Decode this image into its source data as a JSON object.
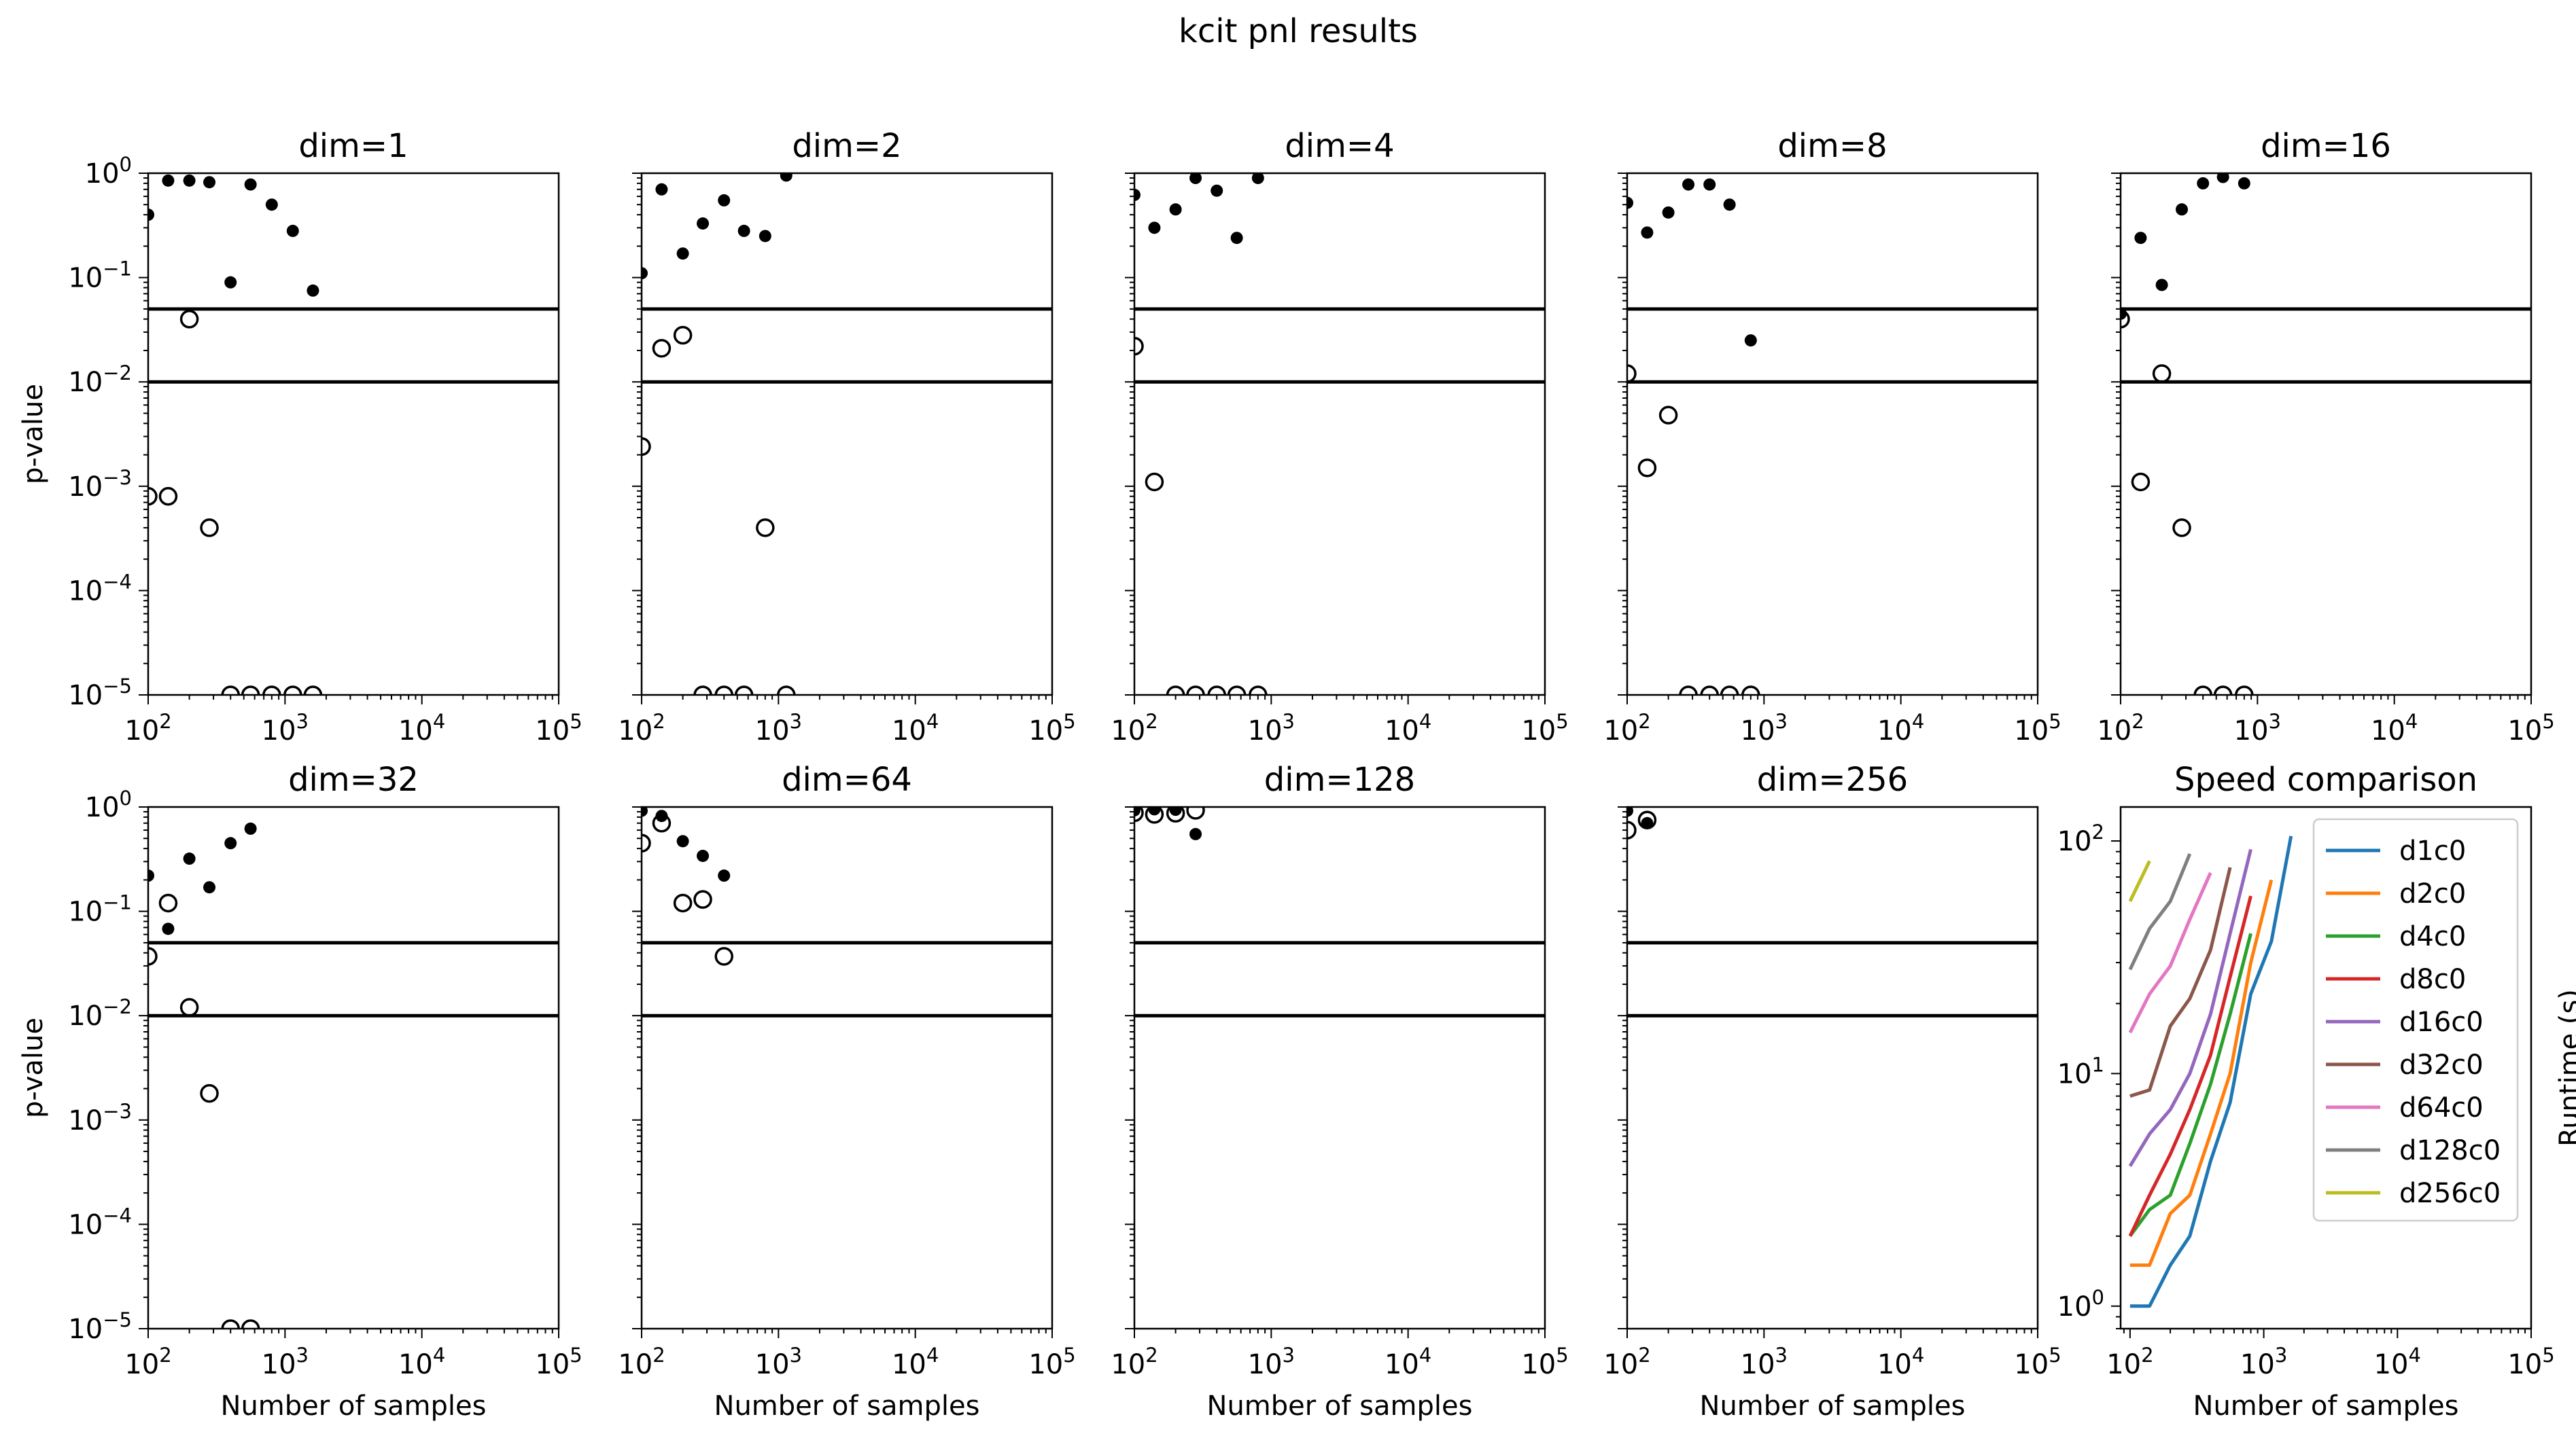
{
  "figure": {
    "title": "kcit pnl results"
  },
  "chart_data": [
    {
      "type": "scatter",
      "title": "dim=1",
      "xlabel": "",
      "ylabel": "p-value",
      "xscale": "log",
      "yscale": "log",
      "xlim": [
        100,
        100000
      ],
      "ylim": [
        1e-05,
        1
      ],
      "xticks": [
        "10^2",
        "10^3",
        "10^4",
        "10^5"
      ],
      "yticks": [
        "10^0",
        "10^-1",
        "10^-2",
        "10^-3",
        "10^-4",
        "10^-5"
      ],
      "hlines": [
        0.05,
        0.01
      ],
      "series": [
        {
          "marker": "filled",
          "points": [
            [
              100,
              0.4
            ],
            [
              140,
              0.85
            ],
            [
              200,
              0.85
            ],
            [
              280,
              0.82
            ],
            [
              400,
              0.09
            ],
            [
              560,
              0.78
            ],
            [
              800,
              0.5
            ],
            [
              1140,
              0.28
            ],
            [
              1600,
              0.075
            ]
          ]
        },
        {
          "marker": "open",
          "points": [
            [
              100,
              0.0008
            ],
            [
              140,
              0.0008
            ],
            [
              200,
              0.04
            ],
            [
              280,
              0.0004
            ],
            [
              400,
              1e-05
            ],
            [
              560,
              1e-05
            ],
            [
              800,
              1e-05
            ],
            [
              1140,
              1e-05
            ],
            [
              1600,
              1e-05
            ]
          ]
        }
      ]
    },
    {
      "type": "scatter",
      "title": "dim=2",
      "xlabel": "",
      "ylabel": "",
      "xscale": "log",
      "yscale": "log",
      "xlim": [
        100,
        100000
      ],
      "ylim": [
        1e-05,
        1
      ],
      "xticks": [
        "10^2",
        "10^3",
        "10^4",
        "10^5"
      ],
      "yticks": [],
      "hlines": [
        0.05,
        0.01
      ],
      "series": [
        {
          "marker": "filled",
          "points": [
            [
              100,
              0.11
            ],
            [
              140,
              0.7
            ],
            [
              200,
              0.17
            ],
            [
              280,
              0.33
            ],
            [
              400,
              0.55
            ],
            [
              560,
              0.28
            ],
            [
              800,
              0.25
            ],
            [
              1140,
              0.95
            ]
          ]
        },
        {
          "marker": "open",
          "points": [
            [
              100,
              0.0024
            ],
            [
              140,
              0.021
            ],
            [
              200,
              0.028
            ],
            [
              280,
              1e-05
            ],
            [
              400,
              1e-05
            ],
            [
              560,
              1e-05
            ],
            [
              800,
              0.0004
            ],
            [
              1140,
              1e-05
            ]
          ]
        }
      ]
    },
    {
      "type": "scatter",
      "title": "dim=4",
      "xlabel": "",
      "ylabel": "",
      "xscale": "log",
      "yscale": "log",
      "xlim": [
        100,
        100000
      ],
      "ylim": [
        1e-05,
        1
      ],
      "xticks": [
        "10^2",
        "10^3",
        "10^4",
        "10^5"
      ],
      "yticks": [],
      "hlines": [
        0.05,
        0.01
      ],
      "series": [
        {
          "marker": "filled",
          "points": [
            [
              100,
              0.62
            ],
            [
              140,
              0.3
            ],
            [
              200,
              0.45
            ],
            [
              280,
              0.9
            ],
            [
              400,
              0.68
            ],
            [
              560,
              0.24
            ],
            [
              800,
              0.9
            ]
          ]
        },
        {
          "marker": "open",
          "points": [
            [
              100,
              0.022
            ],
            [
              140,
              0.0011
            ],
            [
              200,
              1e-05
            ],
            [
              280,
              1e-05
            ],
            [
              400,
              1e-05
            ],
            [
              560,
              1e-05
            ],
            [
              800,
              1e-05
            ]
          ]
        }
      ]
    },
    {
      "type": "scatter",
      "title": "dim=8",
      "xlabel": "",
      "ylabel": "",
      "xscale": "log",
      "yscale": "log",
      "xlim": [
        100,
        100000
      ],
      "ylim": [
        1e-05,
        1
      ],
      "xticks": [
        "10^2",
        "10^3",
        "10^4",
        "10^5"
      ],
      "yticks": [],
      "hlines": [
        0.05,
        0.01
      ],
      "series": [
        {
          "marker": "filled",
          "points": [
            [
              100,
              0.52
            ],
            [
              140,
              0.27
            ],
            [
              200,
              0.42
            ],
            [
              280,
              0.78
            ],
            [
              400,
              0.78
            ],
            [
              560,
              0.5
            ],
            [
              800,
              0.025
            ]
          ]
        },
        {
          "marker": "open",
          "points": [
            [
              100,
              0.012
            ],
            [
              140,
              0.0015
            ],
            [
              200,
              0.0048
            ],
            [
              280,
              1e-05
            ],
            [
              400,
              1e-05
            ],
            [
              560,
              1e-05
            ],
            [
              800,
              1e-05
            ]
          ]
        }
      ]
    },
    {
      "type": "scatter",
      "title": "dim=16",
      "xlabel": "",
      "ylabel": "",
      "xscale": "log",
      "yscale": "log",
      "xlim": [
        100,
        100000
      ],
      "ylim": [
        1e-05,
        1
      ],
      "xticks": [
        "10^2",
        "10^3",
        "10^4",
        "10^5"
      ],
      "yticks": [],
      "hlines": [
        0.05,
        0.01
      ],
      "series": [
        {
          "marker": "filled",
          "points": [
            [
              100,
              0.045
            ],
            [
              140,
              0.24
            ],
            [
              200,
              0.085
            ],
            [
              280,
              0.45
            ],
            [
              400,
              0.8
            ],
            [
              560,
              0.92
            ],
            [
              800,
              0.8
            ]
          ]
        },
        {
          "marker": "open",
          "points": [
            [
              100,
              0.04
            ],
            [
              140,
              0.0011
            ],
            [
              200,
              0.012
            ],
            [
              280,
              0.0004
            ],
            [
              400,
              1e-05
            ],
            [
              560,
              1e-05
            ],
            [
              800,
              1e-05
            ]
          ]
        }
      ]
    },
    {
      "type": "scatter",
      "title": "dim=32",
      "xlabel": "Number of samples",
      "ylabel": "p-value",
      "xscale": "log",
      "yscale": "log",
      "xlim": [
        100,
        100000
      ],
      "ylim": [
        1e-05,
        1
      ],
      "xticks": [
        "10^2",
        "10^3",
        "10^4",
        "10^5"
      ],
      "yticks": [
        "10^0",
        "10^-1",
        "10^-2",
        "10^-3",
        "10^-4",
        "10^-5"
      ],
      "hlines": [
        0.05,
        0.01
      ],
      "series": [
        {
          "marker": "filled",
          "points": [
            [
              100,
              0.22
            ],
            [
              140,
              0.068
            ],
            [
              200,
              0.32
            ],
            [
              280,
              0.17
            ],
            [
              400,
              0.45
            ],
            [
              560,
              0.62
            ]
          ]
        },
        {
          "marker": "open",
          "points": [
            [
              100,
              0.037
            ],
            [
              140,
              0.12
            ],
            [
              200,
              0.012
            ],
            [
              280,
              0.0018
            ],
            [
              400,
              1e-05
            ],
            [
              560,
              1e-05
            ]
          ]
        }
      ]
    },
    {
      "type": "scatter",
      "title": "dim=64",
      "xlabel": "Number of samples",
      "ylabel": "",
      "xscale": "log",
      "yscale": "log",
      "xlim": [
        100,
        100000
      ],
      "ylim": [
        1e-05,
        1
      ],
      "xticks": [
        "10^2",
        "10^3",
        "10^4",
        "10^5"
      ],
      "yticks": [],
      "hlines": [
        0.05,
        0.01
      ],
      "series": [
        {
          "marker": "filled",
          "points": [
            [
              100,
              0.92
            ],
            [
              140,
              0.82
            ],
            [
              200,
              0.47
            ],
            [
              280,
              0.34
            ],
            [
              400,
              0.22
            ]
          ]
        },
        {
          "marker": "open",
          "points": [
            [
              100,
              0.45
            ],
            [
              140,
              0.7
            ],
            [
              200,
              0.12
            ],
            [
              280,
              0.13
            ],
            [
              400,
              0.037
            ]
          ]
        }
      ]
    },
    {
      "type": "scatter",
      "title": "dim=128",
      "xlabel": "Number of samples",
      "ylabel": "",
      "xscale": "log",
      "yscale": "log",
      "xlim": [
        100,
        100000
      ],
      "ylim": [
        1e-05,
        1
      ],
      "xticks": [
        "10^2",
        "10^3",
        "10^4",
        "10^5"
      ],
      "yticks": [],
      "hlines": [
        0.05,
        0.01
      ],
      "series": [
        {
          "marker": "filled",
          "points": [
            [
              100,
              0.93
            ],
            [
              140,
              0.95
            ],
            [
              200,
              0.94
            ],
            [
              280,
              0.55
            ]
          ]
        },
        {
          "marker": "open",
          "points": [
            [
              100,
              0.88
            ],
            [
              140,
              0.85
            ],
            [
              200,
              0.87
            ],
            [
              280,
              0.93
            ]
          ]
        }
      ]
    },
    {
      "type": "scatter",
      "title": "dim=256",
      "xlabel": "Number of samples",
      "ylabel": "",
      "xscale": "log",
      "yscale": "log",
      "xlim": [
        100,
        100000
      ],
      "ylim": [
        1e-05,
        1
      ],
      "xticks": [
        "10^2",
        "10^3",
        "10^4",
        "10^5"
      ],
      "yticks": [],
      "hlines": [
        0.05,
        0.01
      ],
      "series": [
        {
          "marker": "filled",
          "points": [
            [
              100,
              0.92
            ],
            [
              140,
              0.7
            ]
          ]
        },
        {
          "marker": "open",
          "points": [
            [
              100,
              0.6
            ],
            [
              140,
              0.75
            ]
          ]
        }
      ]
    },
    {
      "type": "line",
      "title": "Speed comparison",
      "xlabel": "Number of samples",
      "ylabel": "Runtime (s)",
      "xscale": "log",
      "yscale": "log",
      "xlim": [
        85,
        100000
      ],
      "ylim": [
        0.8,
        140
      ],
      "xticks": [
        "10^2",
        "10^3",
        "10^4",
        "10^5"
      ],
      "yticks": [
        "10^0",
        "10^1",
        "10^2"
      ],
      "legend": "top-right",
      "series": [
        {
          "name": "d1c0",
          "color": "#1f77b4",
          "points": [
            [
              100,
              1.0
            ],
            [
              140,
              1.0
            ],
            [
              200,
              1.5
            ],
            [
              280,
              2.0
            ],
            [
              400,
              4.2
            ],
            [
              560,
              7.5
            ],
            [
              800,
              22
            ],
            [
              1140,
              37
            ],
            [
              1600,
              105
            ]
          ]
        },
        {
          "name": "d2c0",
          "color": "#ff7f0e",
          "points": [
            [
              100,
              1.5
            ],
            [
              140,
              1.5
            ],
            [
              200,
              2.5
            ],
            [
              280,
              3.0
            ],
            [
              400,
              5.5
            ],
            [
              560,
              10
            ],
            [
              800,
              30
            ],
            [
              1140,
              68
            ]
          ]
        },
        {
          "name": "d4c0",
          "color": "#2ca02c",
          "points": [
            [
              100,
              2.0
            ],
            [
              140,
              2.6
            ],
            [
              200,
              3.0
            ],
            [
              280,
              5.0
            ],
            [
              400,
              9.0
            ],
            [
              560,
              18
            ],
            [
              800,
              40
            ]
          ]
        },
        {
          "name": "d8c0",
          "color": "#d62728",
          "points": [
            [
              100,
              2.0
            ],
            [
              140,
              3.0
            ],
            [
              200,
              4.5
            ],
            [
              280,
              7.0
            ],
            [
              400,
              12
            ],
            [
              560,
              26
            ],
            [
              800,
              58
            ]
          ]
        },
        {
          "name": "d16c0",
          "color": "#9467bd",
          "points": [
            [
              100,
              4.0
            ],
            [
              140,
              5.5
            ],
            [
              200,
              7.0
            ],
            [
              280,
              10
            ],
            [
              400,
              18
            ],
            [
              560,
              40
            ],
            [
              800,
              92
            ]
          ]
        },
        {
          "name": "d32c0",
          "color": "#8c564b",
          "points": [
            [
              100,
              8.0
            ],
            [
              140,
              8.5
            ],
            [
              200,
              16
            ],
            [
              280,
              21
            ],
            [
              400,
              34
            ],
            [
              560,
              77
            ]
          ]
        },
        {
          "name": "d64c0",
          "color": "#e377c2",
          "points": [
            [
              100,
              15
            ],
            [
              140,
              22
            ],
            [
              200,
              29
            ],
            [
              280,
              46
            ],
            [
              400,
              73
            ]
          ]
        },
        {
          "name": "d128c0",
          "color": "#7f7f7f",
          "points": [
            [
              100,
              28
            ],
            [
              140,
              42
            ],
            [
              200,
              55
            ],
            [
              280,
              88
            ]
          ]
        },
        {
          "name": "d256c0",
          "color": "#bcbd22",
          "points": [
            [
              100,
              55
            ],
            [
              140,
              82
            ]
          ]
        }
      ]
    }
  ]
}
